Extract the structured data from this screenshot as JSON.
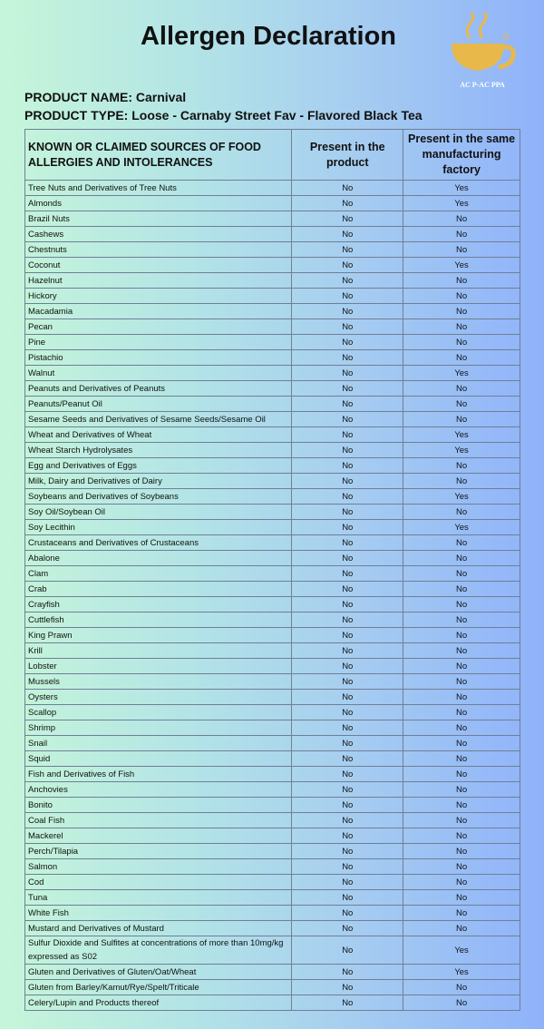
{
  "title": "Allergen Declaration",
  "logo": {
    "text": "AC P-AC PPA",
    "color": "#e8b84a"
  },
  "product": {
    "name_label": "PRODUCT NAME:",
    "name": "Carnival",
    "type_label": "PRODUCT TYPE:",
    "type": "Loose - Carnaby Street Fav - Flavored Black Tea"
  },
  "table": {
    "headers": [
      "KNOWN OR CLAIMED SOURCES OF FOOD ALLERGIES AND INTOLERANCES",
      "Present in the product",
      "Present in the same manufacturing factory"
    ],
    "rows": [
      [
        "Tree Nuts and Derivatives of Tree Nuts",
        "No",
        "Yes"
      ],
      [
        "Almonds",
        "No",
        "Yes"
      ],
      [
        "Brazil Nuts",
        "No",
        "No"
      ],
      [
        "Cashews",
        "No",
        "No"
      ],
      [
        "Chestnuts",
        "No",
        "No"
      ],
      [
        "Coconut",
        "No",
        "Yes"
      ],
      [
        "Hazelnut",
        "No",
        "No"
      ],
      [
        "Hickory",
        "No",
        "No"
      ],
      [
        "Macadamia",
        "No",
        "No"
      ],
      [
        "Pecan",
        "No",
        "No"
      ],
      [
        "Pine",
        "No",
        "No"
      ],
      [
        "Pistachio",
        "No",
        "No"
      ],
      [
        "Walnut",
        "No",
        "Yes"
      ],
      [
        "Peanuts and Derivatives of Peanuts",
        "No",
        "No"
      ],
      [
        "Peanuts/Peanut Oil",
        "No",
        "No"
      ],
      [
        "Sesame Seeds and Derivatives of Sesame Seeds/Sesame Oil",
        "No",
        "No"
      ],
      [
        "Wheat and Derivatives of Wheat",
        "No",
        "Yes"
      ],
      [
        "Wheat Starch Hydrolysates",
        "No",
        "Yes"
      ],
      [
        "Egg and Derivatives of Eggs",
        "No",
        "No"
      ],
      [
        "Milk, Dairy and Derivatives of Dairy",
        "No",
        "No"
      ],
      [
        "Soybeans and Derivatives of Soybeans",
        "No",
        "Yes"
      ],
      [
        "Soy Oil/Soybean Oil",
        "No",
        "No"
      ],
      [
        "Soy Lecithin",
        "No",
        "Yes"
      ],
      [
        "Crustaceans and Derivatives of Crustaceans",
        "No",
        "No"
      ],
      [
        "Abalone",
        "No",
        "No"
      ],
      [
        "Clam",
        "No",
        "No"
      ],
      [
        "Crab",
        "No",
        "No"
      ],
      [
        "Crayfish",
        "No",
        "No"
      ],
      [
        "Cuttlefish",
        "No",
        "No"
      ],
      [
        "King Prawn",
        "No",
        "No"
      ],
      [
        "Krill",
        "No",
        "No"
      ],
      [
        "Lobster",
        "No",
        "No"
      ],
      [
        "Mussels",
        "No",
        "No"
      ],
      [
        "Oysters",
        "No",
        "No"
      ],
      [
        "Scallop",
        "No",
        "No"
      ],
      [
        "Shrimp",
        "No",
        "No"
      ],
      [
        "Snail",
        "No",
        "No"
      ],
      [
        "Squid",
        "No",
        "No"
      ],
      [
        "Fish and Derivatives of Fish",
        "No",
        "No"
      ],
      [
        "Anchovies",
        "No",
        "No"
      ],
      [
        "Bonito",
        "No",
        "No"
      ],
      [
        "Coal Fish",
        "No",
        "No"
      ],
      [
        "Mackerel",
        "No",
        "No"
      ],
      [
        "Perch/Tilapia",
        "No",
        "No"
      ],
      [
        "Salmon",
        "No",
        "No"
      ],
      [
        "Cod",
        "No",
        "No"
      ],
      [
        "Tuna",
        "No",
        "No"
      ],
      [
        "White Fish",
        "No",
        "No"
      ],
      [
        "Mustard and Derivatives of Mustard",
        "No",
        "No"
      ],
      [
        "Sulfur Dioxide and Sulfites at concentrations of more than 10mg/kg expressed as S02",
        "No",
        "Yes"
      ],
      [
        "Gluten and Derivatives of Gluten/Oat/Wheat",
        "No",
        "Yes"
      ],
      [
        "Gluten from Barley/Kamut/Rye/Spelt/Triticale",
        "No",
        "No"
      ],
      [
        "Celery/Lupin and Products thereof",
        "No",
        "No"
      ]
    ]
  }
}
